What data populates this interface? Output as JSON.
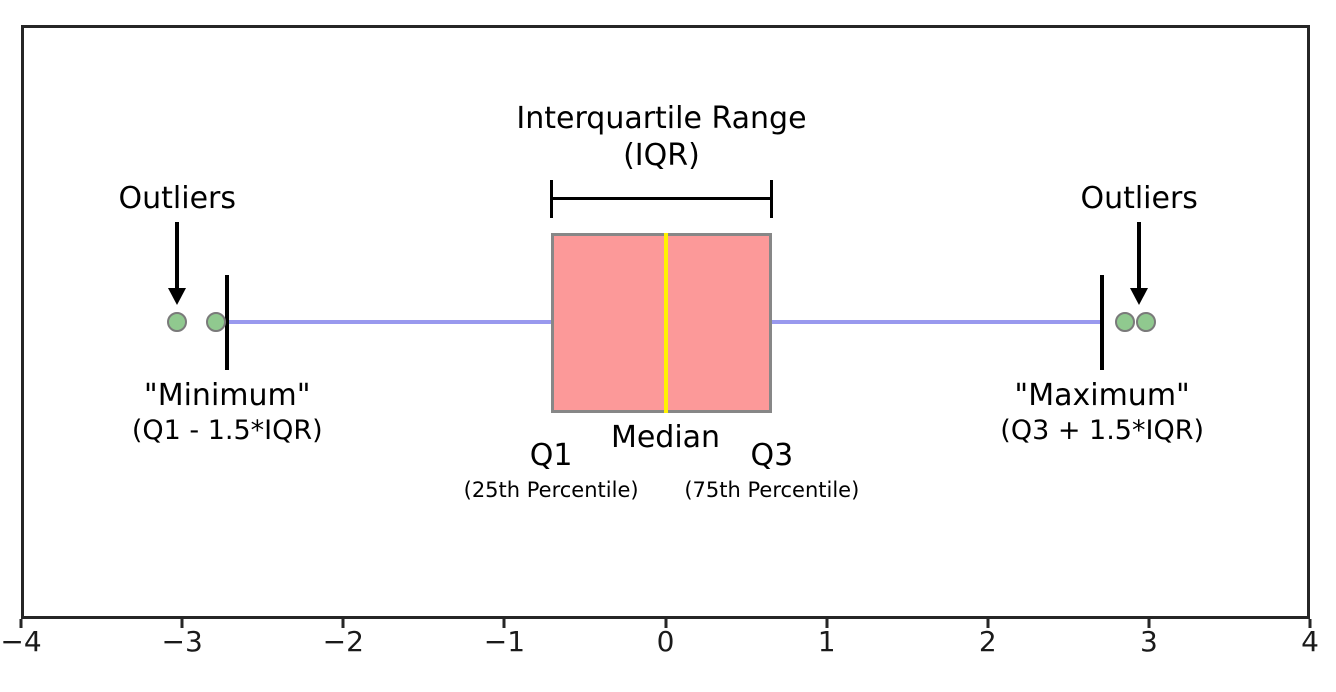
{
  "figure": {
    "background": "#ffffff",
    "frame_color": "#262626"
  },
  "chart_data": {
    "type": "boxplot",
    "orientation": "horizontal",
    "title": "",
    "x_axis": {
      "min": -4,
      "max": 4,
      "grid": false,
      "ticks": [
        {
          "value": -4,
          "label": "−4"
        },
        {
          "value": -3,
          "label": "−3"
        },
        {
          "value": -2,
          "label": "−2"
        },
        {
          "value": -1,
          "label": "−1"
        },
        {
          "value": 0,
          "label": "0"
        },
        {
          "value": 1,
          "label": "1"
        },
        {
          "value": 2,
          "label": "2"
        },
        {
          "value": 3,
          "label": "3"
        },
        {
          "value": 4,
          "label": "4"
        }
      ]
    },
    "box": {
      "q1": -0.71,
      "median": 0,
      "q3": 0.66,
      "whisker_low": -2.72,
      "whisker_high": 2.71,
      "outliers": [
        -3.03,
        -2.79,
        2.85,
        2.98
      ]
    },
    "colors": {
      "box_fill": "#FC9999",
      "box_edge": "#878787",
      "median_line": "#FFF200",
      "whisker": "#9999EE",
      "outlier_fill": "#90C98F",
      "outlier_edge": "#7A7A7A"
    },
    "annotations": {
      "iqr_line1": "Interquartile Range",
      "iqr_line2": "(IQR)",
      "outliers_left": "Outliers",
      "outliers_right": "Outliers",
      "left_arrow_x": -3.03,
      "right_arrow_x": 2.94,
      "min_line1": "\"Minimum\"",
      "min_line2": "(Q1 - 1.5*IQR)",
      "max_line1": "\"Maximum\"",
      "max_line2": "(Q3 + 1.5*IQR)",
      "q1_label": "Q1",
      "q1_sub": "(25th Percentile)",
      "median_label": "Median",
      "q3_label": "Q3",
      "q3_sub": "(75th Percentile)"
    }
  }
}
